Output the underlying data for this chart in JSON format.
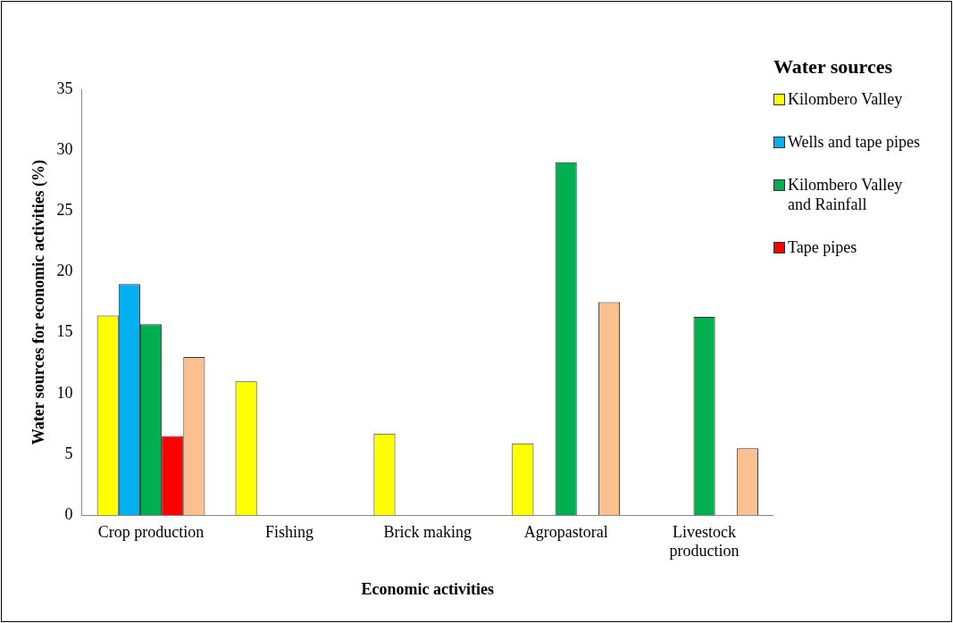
{
  "chart_data": {
    "type": "bar",
    "xlabel": "Economic activities",
    "ylabel": "Water sources for economic activities (%)",
    "legend_title": "Water sources",
    "legend": "right",
    "categories": [
      "Crop production",
      "Fishing",
      "Brick making",
      "Agropastoral",
      "Livestock production"
    ],
    "series": [
      {
        "name": "Kilombero Valley",
        "color": "#ffff00",
        "values": [
          16.4,
          11.0,
          6.7,
          5.9,
          null
        ]
      },
      {
        "name": "Wells and tape pipes",
        "color": "#00b0f0",
        "values": [
          19.0,
          null,
          null,
          null,
          null
        ]
      },
      {
        "name": "Kilombero Valley and Rainfall",
        "color": "#00b050",
        "values": [
          15.7,
          null,
          null,
          29.0,
          16.3
        ]
      },
      {
        "name": "Tape pipes",
        "color": "#ff0000",
        "values": [
          6.5,
          null,
          null,
          null,
          null
        ]
      },
      {
        "color": "#fac090",
        "values": [
          13.0,
          null,
          null,
          17.5,
          5.5
        ]
      }
    ],
    "ylim": [
      0,
      35
    ],
    "yticks": [
      0,
      5,
      10,
      15,
      20,
      25,
      30,
      35
    ],
    "grid": false
  }
}
